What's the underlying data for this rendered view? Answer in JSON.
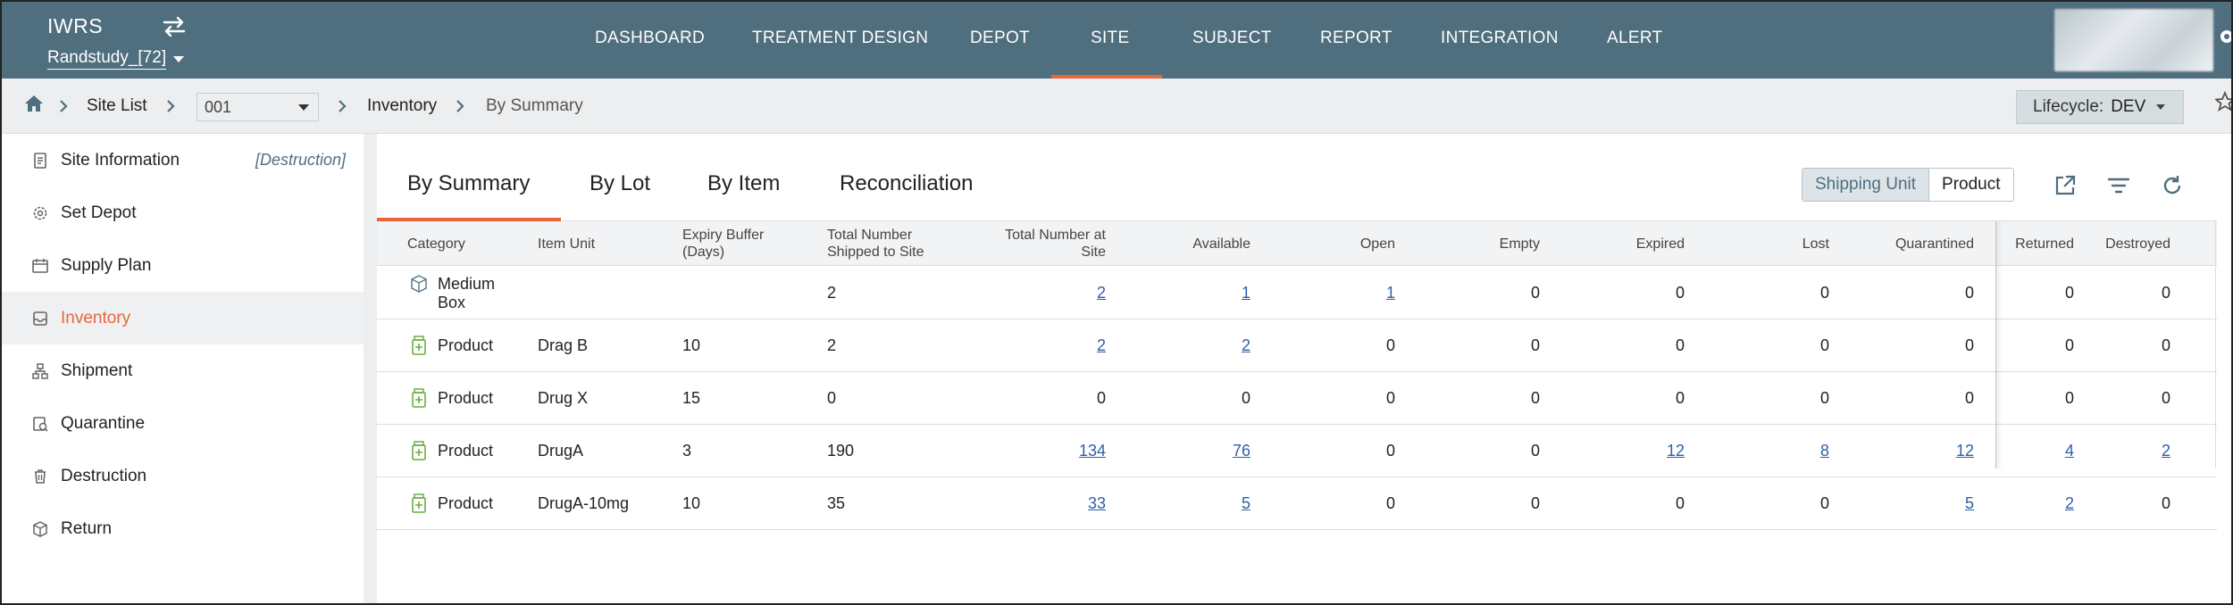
{
  "app": {
    "title": "IWRS",
    "study": "Randstudy_[72]"
  },
  "nav": {
    "items": [
      "DASHBOARD",
      "TREATMENT DESIGN",
      "DEPOT",
      "SITE",
      "SUBJECT",
      "REPORT",
      "INTEGRATION",
      "ALERT"
    ],
    "active": "SITE"
  },
  "breadcrumb": {
    "site_list": "Site List",
    "site_value": "001",
    "inventory": "Inventory",
    "current": "By Summary"
  },
  "lifecycle": {
    "label": "Lifecycle:",
    "value": "DEV"
  },
  "sidebar": {
    "items": [
      {
        "label": "Site Information",
        "icon": "document-icon",
        "badge": "[Destruction]"
      },
      {
        "label": "Set Depot",
        "icon": "gear-icon"
      },
      {
        "label": "Supply Plan",
        "icon": "calendar-icon"
      },
      {
        "label": "Inventory",
        "icon": "inbox-icon"
      },
      {
        "label": "Shipment",
        "icon": "hierarchy-icon"
      },
      {
        "label": "Quarantine",
        "icon": "quarantine-icon"
      },
      {
        "label": "Destruction",
        "icon": "trash-icon"
      },
      {
        "label": "Return",
        "icon": "box-icon"
      }
    ],
    "active": "Inventory"
  },
  "tabs": {
    "items": [
      "By Summary",
      "By Lot",
      "By Item",
      "Reconciliation"
    ],
    "active": "By Summary"
  },
  "toggle": {
    "options": [
      "Shipping Unit",
      "Product"
    ],
    "selected": "Shipping Unit"
  },
  "table": {
    "headers": {
      "category": "Category",
      "item_unit": "Item Unit",
      "expiry_1": "Expiry Buffer",
      "expiry_2": "(Days)",
      "shipped_1": "Total Number",
      "shipped_2": "Shipped to Site",
      "atsite_1": "Total Number at",
      "atsite_2": "Site",
      "available": "Available",
      "open": "Open",
      "empty": "Empty",
      "expired": "Expired",
      "lost": "Lost",
      "quarantined": "Quarantined",
      "returned": "Returned",
      "destroyed": "Destroyed"
    },
    "rows": [
      {
        "category": "Medium Box",
        "category_l1": "Medium",
        "category_l2": "Box",
        "icon": "box-icon",
        "item_unit": "",
        "expiry": "",
        "shipped": "2",
        "at_site": "2",
        "available": "1",
        "open": "1",
        "empty": "0",
        "expired": "0",
        "lost": "0",
        "quarantined": "0",
        "returned": "0",
        "destroyed": "0"
      },
      {
        "category": "Product",
        "icon": "medicine-bottle-icon",
        "item_unit": "Drag B",
        "expiry": "10",
        "shipped": "2",
        "at_site": "2",
        "available": "2",
        "open": "0",
        "empty": "0",
        "expired": "0",
        "lost": "0",
        "quarantined": "0",
        "returned": "0",
        "destroyed": "0"
      },
      {
        "category": "Product",
        "icon": "medicine-bottle-icon",
        "item_unit": "Drug X",
        "expiry": "15",
        "shipped": "0",
        "at_site": "0",
        "available": "0",
        "open": "0",
        "empty": "0",
        "expired": "0",
        "lost": "0",
        "quarantined": "0",
        "returned": "0",
        "destroyed": "0"
      },
      {
        "category": "Product",
        "icon": "medicine-bottle-icon",
        "item_unit": "DrugA",
        "expiry": "3",
        "shipped": "190",
        "at_site": "134",
        "available": "76",
        "open": "0",
        "empty": "0",
        "expired": "12",
        "lost": "8",
        "quarantined": "12",
        "returned": "4",
        "destroyed": "2"
      },
      {
        "category": "Product",
        "icon": "medicine-bottle-icon",
        "item_unit": "DrugA-10mg",
        "expiry": "10",
        "shipped": "35",
        "at_site": "33",
        "available": "5",
        "open": "0",
        "empty": "0",
        "expired": "0",
        "lost": "0",
        "quarantined": "5",
        "returned": "2",
        "destroyed": "0"
      }
    ]
  },
  "colors": {
    "topbar": "#4f6e7e",
    "accent": "#e8663a",
    "link": "#2f5ea8",
    "product_icon": "#6aae3e"
  }
}
